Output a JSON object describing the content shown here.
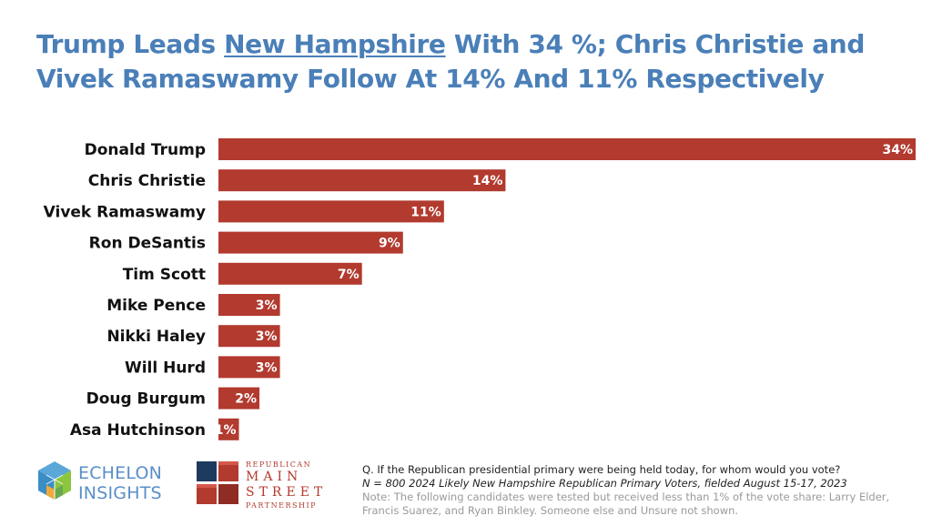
{
  "title": {
    "part1": "Trump Leads ",
    "underlined": "New Hampshire",
    "part2": " With 34 %; Chris Christie and Vivek Ramaswamy Follow At 14% And 11% Respectively"
  },
  "chart_data": {
    "type": "bar",
    "orientation": "horizontal",
    "categories": [
      "Donald Trump",
      "Chris Christie",
      "Vivek Ramaswamy",
      "Ron DeSantis",
      "Tim Scott",
      "Mike Pence",
      "Nikki Haley",
      "Will Hurd",
      "Doug Burgum",
      "Asa Hutchinson"
    ],
    "values": [
      34,
      14,
      11,
      9,
      7,
      3,
      3,
      3,
      2,
      1
    ],
    "value_labels": [
      "34%",
      "14%",
      "11%",
      "9%",
      "7%",
      "3%",
      "3%",
      "3%",
      "2%",
      "1%"
    ],
    "xlim": [
      0,
      34
    ],
    "grid": false,
    "bar_color": "#b23a2e"
  },
  "logos": {
    "echelon": {
      "line1": "ECHELON",
      "line2": "INSIGHTS"
    },
    "rms": {
      "line1": "REPUBLICAN",
      "line2": "MAIN",
      "line3": "STREET",
      "line4": "PARTNERSHIP"
    }
  },
  "footnotes": {
    "question": "Q. If the Republican presidential primary were being held today, for whom would you vote?",
    "sample": "N = 800 2024 Likely New Hampshire Republican Primary Voters, fielded August 15-17, 2023",
    "note": "Note: The following candidates were tested but received less than 1% of the vote share: Larry Elder, Francis Suarez, and Ryan Binkley. Someone else and Unsure not shown."
  },
  "colors": {
    "title": "#4a7fb8",
    "bar": "#b23a2e",
    "echelon_blue": "#5a8fc9",
    "rms_red": "#b23a2e"
  }
}
